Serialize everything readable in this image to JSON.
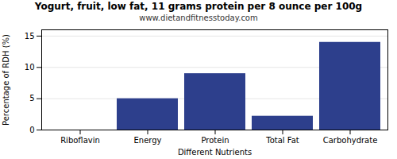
{
  "chart_data": {
    "type": "bar",
    "title": "Yogurt, fruit, low fat, 11 grams protein per 8 ounce per 100g",
    "subtitle": "www.dietandfitnesstoday.com",
    "xlabel": "Different Nutrients",
    "ylabel": "Percentage of RDH (%)",
    "categories": [
      "Riboflavin",
      "Energy",
      "Protein",
      "Total Fat",
      "Carbohydrate"
    ],
    "values": [
      0,
      5,
      9,
      2.2,
      14
    ],
    "color": "#2d3f8c",
    "ylim": [
      0,
      16
    ],
    "yticks": [
      0,
      5,
      10,
      15
    ],
    "grid": true
  }
}
